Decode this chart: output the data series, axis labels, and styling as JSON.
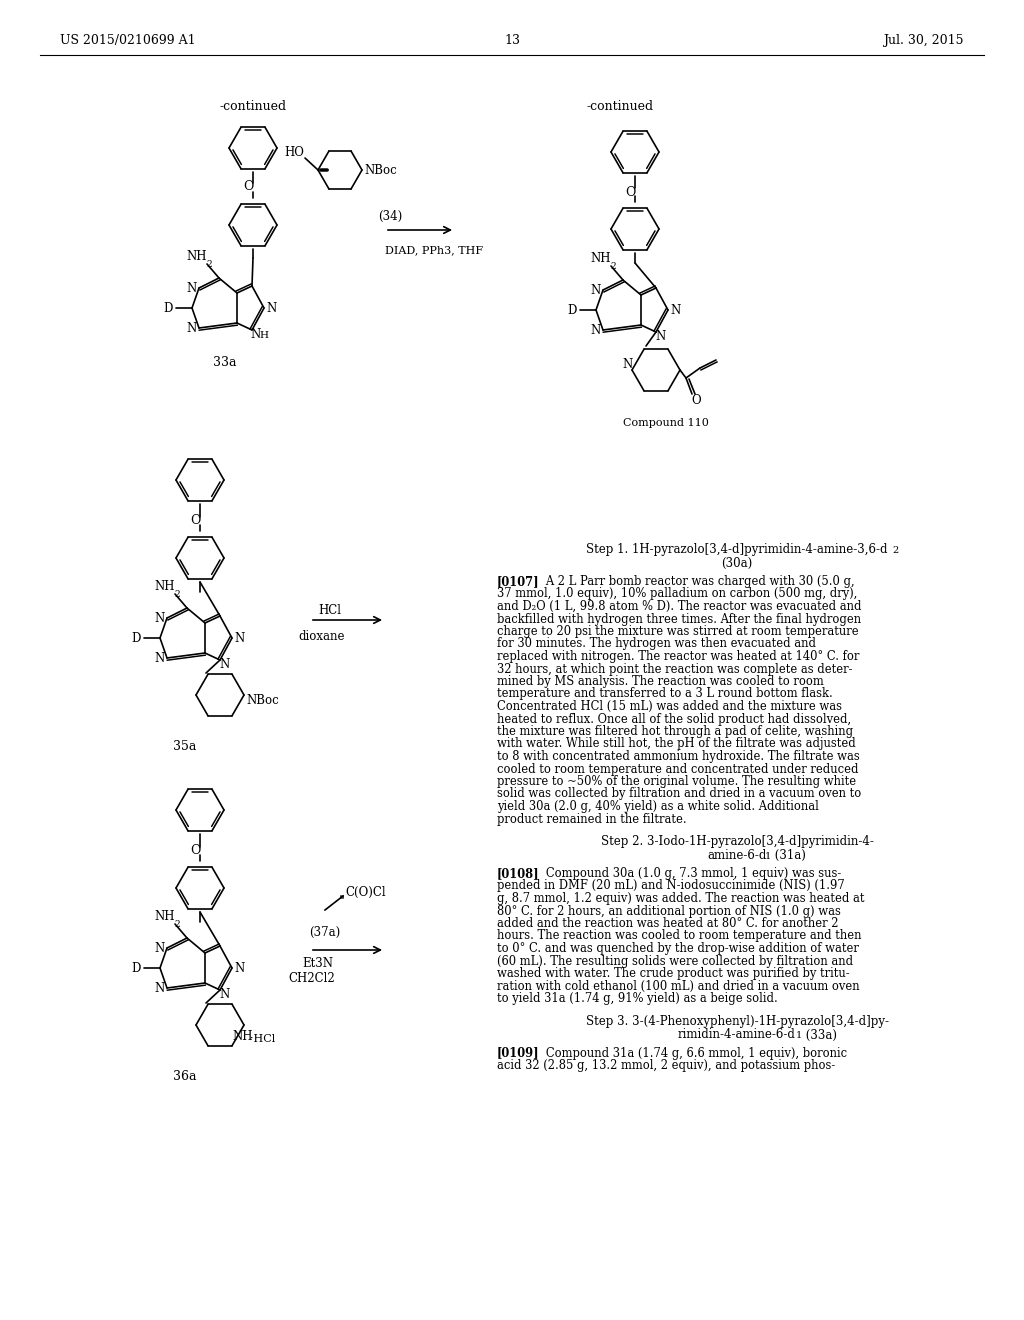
{
  "page_number": "13",
  "header_left": "US 2015/0210699 A1",
  "header_right": "Jul. 30, 2015",
  "background_color": "#ffffff",
  "continued_left": "-continued",
  "continued_right": "-continued",
  "compound_110_label": "Compound 110",
  "label_33a": "33a",
  "label_35a": "35a",
  "label_36a": "36a",
  "rxn1_label1": "(34)",
  "rxn1_label2": "DIAD, PPh3, THF",
  "rxn2_label1": "HCl",
  "rxn2_label2": "dioxane",
  "rxn3_reagent": "C(O)Cl",
  "rxn3_label1": "(37a)",
  "rxn3_label2": "Et3N",
  "rxn3_label3": "CH2Cl2",
  "step1_head": "Step 1. 1H-pyrazolo[3,4-d]pyrimidin-4-amine-3,6-d",
  "step1_head_sub": "2",
  "step1_head2": "(30a)",
  "step2_head": "Step 2. 3-Iodo-1H-pyrazolo[3,4-d]pyrimidin-4-",
  "step2_head2": "amine-6-d",
  "step2_head_sub": "1",
  "step2_head3": " (31a)",
  "step3_head": "Step 3. 3-(4-Phenoxyphenyl)-1H-pyrazolo[3,4-d]py-",
  "step3_head2": "rimidin-4-amine-6-d",
  "step3_head_sub": "1",
  "step3_head3": " (33a)",
  "para0107_bold": "[0107]",
  "para0107_text": "   A 2 L Parr bomb reactor was charged with 30 (5.0 g, 37 mmol, 1.0 equiv), 10% palladium on carbon (500 mg, dry), and D",
  "para0107_sub": "2",
  "para0107_text2": "O (1 L, 99.8 atom % D). The reactor was evacuated and backfilled with hydrogen three times. After the final hydrogen charge to 20 psi the mixture was stirred at room temperature for 30 minutes. The hydrogen was then evacuated and replaced with nitrogen. The reactor was heated at 140° C. for 32 hours, at which point the reaction was complete as determined by MS analysis. The reaction was cooled to room temperature and transferred to a 3 L round bottom flask. Concentrated HCl (15 mL) was added and the mixture was heated to reflux. Once all of the solid product had dissolved, the mixture was filtered hot through a pad of celite, washing with water. While still hot, the pH of the filtrate was adjusted to 8 with concentrated ammonium hydroxide. The filtrate was cooled to room temperature and concentrated under reduced pressure to ~50% of the original volume. The resulting white solid was collected by filtration and dried in a vacuum oven to yield 30a (2.0 g, 40% yield) as a white solid. Additional product remained in the filtrate.",
  "para0108_bold": "[0108]",
  "para0108_text": "   Compound 30a (1.0 g, 7.3 mmol, 1 equiv) was suspended in DMF (20 mL) and N-iodosuccinimide (NIS) (1.97 g, 8.7 mmol, 1.2 equiv) was added. The reaction was heated at 80° C. for 2 hours, an additional portion of NIS (1.0 g) was added and the reaction was heated at 80° C. for another 2 hours. The reaction was cooled to room temperature and then to 0° C. and was quenched by the drop-wise addition of water (60 mL). The resulting solids were collected by filtration and washed with water. The crude product was purified by trituration with cold ethanol (100 mL) and dried in a vacuum oven to yield 31a (1.74 g, 91% yield) as a beige solid.",
  "para0109_bold": "[0109]",
  "para0109_text": "   Compound 31a (1.74 g, 6.6 mmol, 1 equiv), boronic acid 32 (2.85 g, 13.2 mmol, 2 equiv), and potassium phos-"
}
